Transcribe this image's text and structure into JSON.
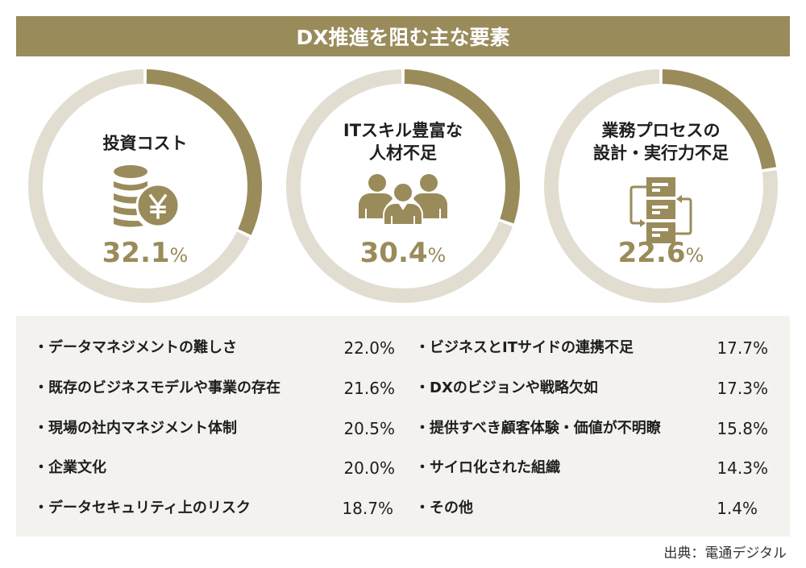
{
  "title": "DX推進を阻む主な要素",
  "colors": {
    "accent": "#9a8b5a",
    "track": "#e1ded1",
    "panel": "#f3f2ee",
    "text": "#1e1e1e"
  },
  "chart_data": {
    "type": "pie",
    "title": "DX推進を阻む主な要素",
    "top_factors": [
      {
        "label_lines": [
          "投資コスト"
        ],
        "value": 32.1,
        "value_text": "32.1",
        "unit": "%",
        "icon": "coins-yen-icon"
      },
      {
        "label_lines": [
          "ITスキル豊富な",
          "人材不足"
        ],
        "value": 30.4,
        "value_text": "30.4",
        "unit": "%",
        "icon": "people-group-icon"
      },
      {
        "label_lines": [
          "業務プロセスの",
          "設計・実行力不足"
        ],
        "value": 22.6,
        "value_text": "22.6",
        "unit": "%",
        "icon": "process-flow-icon"
      }
    ],
    "other_factors": {
      "left": [
        {
          "label": "・データマネジメントの難しさ",
          "value": 22.0,
          "value_text": "22.0%"
        },
        {
          "label": "・既存のビジネスモデルや事業の存在",
          "value": 21.6,
          "value_text": "21.6%"
        },
        {
          "label": "・現場の社内マネジメント体制",
          "value": 20.5,
          "value_text": "20.5%"
        },
        {
          "label": "・企業文化",
          "value": 20.0,
          "value_text": "20.0%"
        },
        {
          "label": "・データセキュリティ上のリスク",
          "value": 18.7,
          "value_text": "18.7%"
        }
      ],
      "right": [
        {
          "label": "・ビジネスとITサイドの連携不足",
          "value": 17.7,
          "value_text": "17.7%"
        },
        {
          "label": "・DXのビジョンや戦略欠如",
          "value": 17.3,
          "value_text": "17.3%"
        },
        {
          "label": "・提供すべき顧客体験・価値が不明瞭",
          "value": 15.8,
          "value_text": "15.8%"
        },
        {
          "label": "・サイロ化された組織",
          "value": 14.3,
          "value_text": "14.3%"
        },
        {
          "label": "・その他",
          "value": 1.4,
          "value_text": "1.4%"
        }
      ]
    }
  },
  "source": "出典：電通デジタル"
}
